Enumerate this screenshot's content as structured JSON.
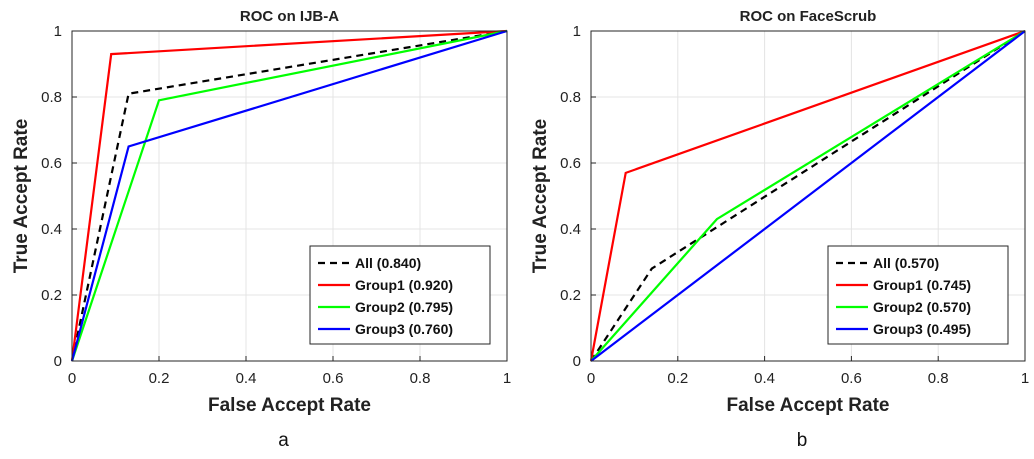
{
  "chart_data": [
    {
      "type": "line",
      "title": "ROC on IJB-A",
      "xlabel": "False Accept Rate",
      "ylabel": "True Accept Rate",
      "panel_label": "a",
      "xlim": [
        0,
        1
      ],
      "ylim": [
        0,
        1
      ],
      "xticks": [
        "0",
        "0.2",
        "0.4",
        "0.6",
        "0.8",
        "1"
      ],
      "yticks": [
        "0",
        "0.2",
        "0.4",
        "0.6",
        "0.8",
        "1"
      ],
      "grid": true,
      "legend_position": "bottom-right",
      "series": [
        {
          "name": "All (0.840)",
          "color": "#000000",
          "dash": true,
          "points": [
            [
              0,
              0
            ],
            [
              0.13,
              0.81
            ],
            [
              1,
              1
            ]
          ]
        },
        {
          "name": "Group1 (0.920)",
          "color": "#ff0000",
          "dash": false,
          "points": [
            [
              0,
              0
            ],
            [
              0.09,
              0.93
            ],
            [
              1,
              1
            ]
          ]
        },
        {
          "name": "Group2 (0.795)",
          "color": "#00ff00",
          "dash": false,
          "points": [
            [
              0,
              0
            ],
            [
              0.2,
              0.79
            ],
            [
              1,
              1
            ]
          ]
        },
        {
          "name": "Group3 (0.760)",
          "color": "#0000ff",
          "dash": false,
          "points": [
            [
              0,
              0
            ],
            [
              0.13,
              0.65
            ],
            [
              1,
              1
            ]
          ]
        }
      ]
    },
    {
      "type": "line",
      "title": "ROC on FaceScrub",
      "xlabel": "False Accept Rate",
      "ylabel": "True Accept Rate",
      "panel_label": "b",
      "xlim": [
        0,
        1
      ],
      "ylim": [
        0,
        1
      ],
      "xticks": [
        "0",
        "0.2",
        "0.4",
        "0.6",
        "0.8",
        "1"
      ],
      "yticks": [
        "0",
        "0.2",
        "0.4",
        "0.6",
        "0.8",
        "1"
      ],
      "grid": true,
      "legend_position": "bottom-right",
      "series": [
        {
          "name": "All (0.570)",
          "color": "#000000",
          "dash": true,
          "points": [
            [
              0,
              0
            ],
            [
              0.14,
              0.28
            ],
            [
              1,
              1
            ]
          ]
        },
        {
          "name": "Group1 (0.745)",
          "color": "#ff0000",
          "dash": false,
          "points": [
            [
              0,
              0
            ],
            [
              0.08,
              0.57
            ],
            [
              1,
              1
            ]
          ]
        },
        {
          "name": "Group2 (0.570)",
          "color": "#00ff00",
          "dash": false,
          "points": [
            [
              0,
              0
            ],
            [
              0.29,
              0.43
            ],
            [
              1,
              1
            ]
          ]
        },
        {
          "name": "Group3 (0.495)",
          "color": "#0000ff",
          "dash": false,
          "points": [
            [
              0,
              0
            ],
            [
              1,
              1
            ]
          ]
        }
      ]
    }
  ]
}
